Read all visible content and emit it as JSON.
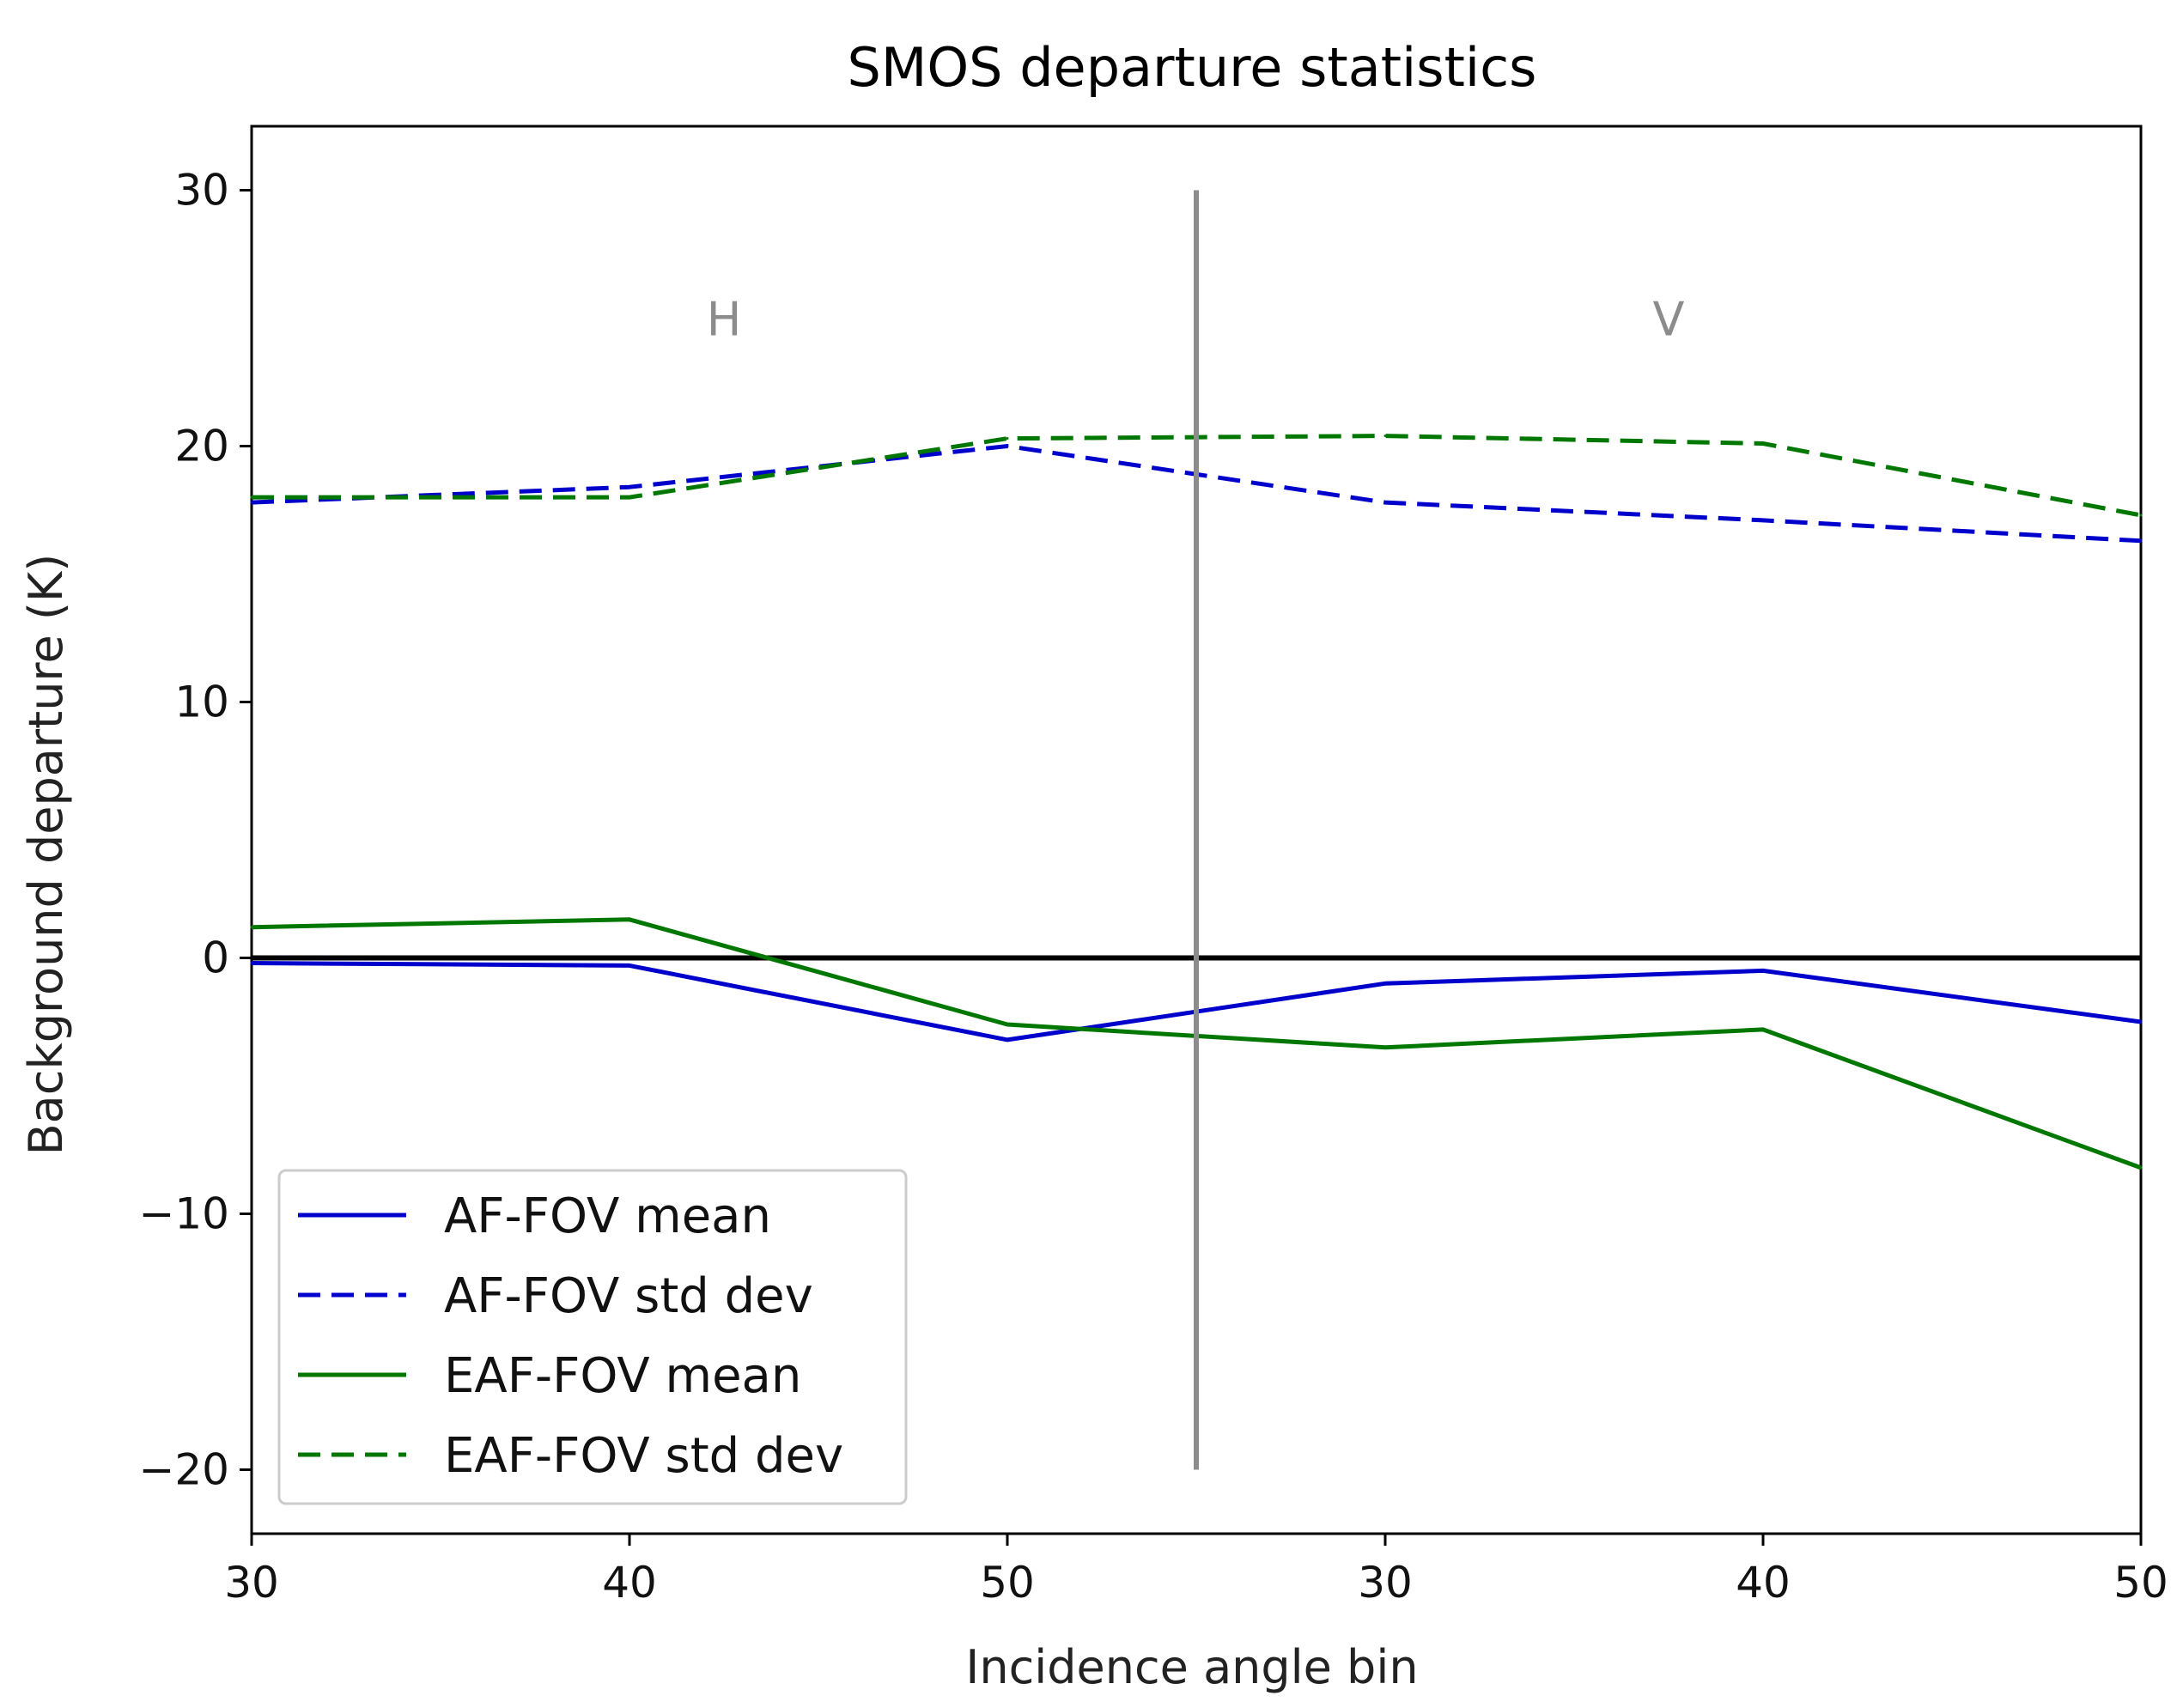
{
  "chart_data": {
    "type": "line",
    "title": "SMOS departure statistics",
    "xlabel": "Incidence angle bin",
    "ylabel": "Background departure (K)",
    "x": [
      0,
      1,
      2,
      3,
      4,
      5
    ],
    "xticks": [
      {
        "pos": 0,
        "label": "30"
      },
      {
        "pos": 1,
        "label": "40"
      },
      {
        "pos": 2,
        "label": "50"
      },
      {
        "pos": 3,
        "label": "30"
      },
      {
        "pos": 4,
        "label": "40"
      },
      {
        "pos": 5,
        "label": "50"
      }
    ],
    "xlim": [
      0,
      5
    ],
    "ylim": [
      -22.5,
      32.5
    ],
    "yticks": [
      {
        "value": 30,
        "label": "30"
      },
      {
        "value": 20,
        "label": "20"
      },
      {
        "value": 10,
        "label": "10"
      },
      {
        "value": 0,
        "label": "0"
      },
      {
        "value": -10,
        "label": "−10"
      },
      {
        "value": -20,
        "label": "−20"
      }
    ],
    "series": [
      {
        "name": "AF-FOV mean",
        "color": "#0000cc",
        "style": "solid",
        "values": [
          -0.2,
          -0.3,
          -3.2,
          -1.0,
          -0.5,
          -2.5
        ]
      },
      {
        "name": "AF-FOV std dev",
        "color": "#0000cc",
        "style": "dashed",
        "values": [
          17.8,
          18.4,
          20.0,
          17.8,
          17.1,
          16.3
        ]
      },
      {
        "name": "EAF-FOV mean",
        "color": "#007700",
        "style": "solid",
        "values": [
          1.2,
          1.5,
          -2.6,
          -3.5,
          -2.8,
          -8.2
        ]
      },
      {
        "name": "EAF-FOV std dev",
        "color": "#007700",
        "style": "dashed",
        "values": [
          18.0,
          18.0,
          20.3,
          20.4,
          20.1,
          17.3
        ]
      }
    ],
    "zero_line": {
      "value": 0,
      "color": "#000000"
    },
    "separator": {
      "x": 2.5,
      "y_range": [
        -20,
        30
      ],
      "color": "#8c8c8c"
    },
    "annotations": [
      {
        "text": "H",
        "x": 1.25,
        "y": 25
      },
      {
        "text": "V",
        "x": 3.75,
        "y": 25
      }
    ],
    "legend": {
      "position": "bottom-left"
    }
  }
}
